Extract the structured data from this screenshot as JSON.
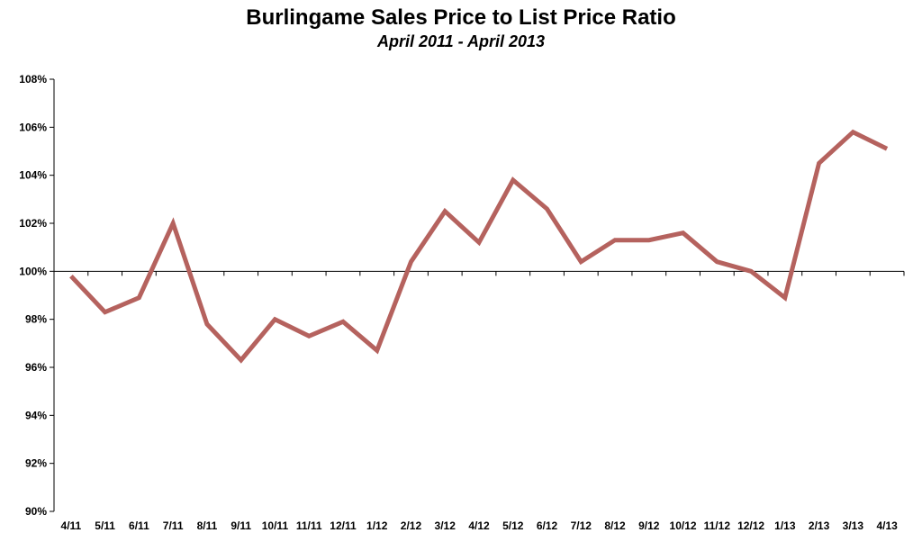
{
  "chart_data": {
    "type": "line",
    "title": "Burlingame Sales Price to List Price Ratio",
    "subtitle": "April 2011 - April 2013",
    "xlabel": "",
    "ylabel": "",
    "categories": [
      "4/11",
      "5/11",
      "6/11",
      "7/11",
      "8/11",
      "9/11",
      "10/11",
      "11/11",
      "12/11",
      "1/12",
      "2/12",
      "3/12",
      "4/12",
      "5/12",
      "6/12",
      "7/12",
      "8/12",
      "9/12",
      "10/12",
      "11/12",
      "12/12",
      "1/13",
      "2/13",
      "3/13",
      "4/13"
    ],
    "series": [
      {
        "color": "#b5625e",
        "values": [
          99.8,
          98.3,
          98.9,
          102.0,
          97.8,
          96.3,
          98.0,
          97.3,
          97.9,
          96.7,
          100.4,
          102.5,
          101.2,
          103.8,
          102.6,
          100.4,
          101.3,
          101.3,
          101.6,
          100.4,
          100.0,
          98.9,
          104.5,
          105.8,
          105.1
        ]
      }
    ],
    "ylim": [
      90,
      108
    ],
    "yticks": [
      90,
      92,
      94,
      96,
      98,
      100,
      102,
      104,
      106,
      108
    ],
    "ytick_format": "%",
    "x_axis_crosses_at": 100,
    "grid": false,
    "legend": "none"
  }
}
